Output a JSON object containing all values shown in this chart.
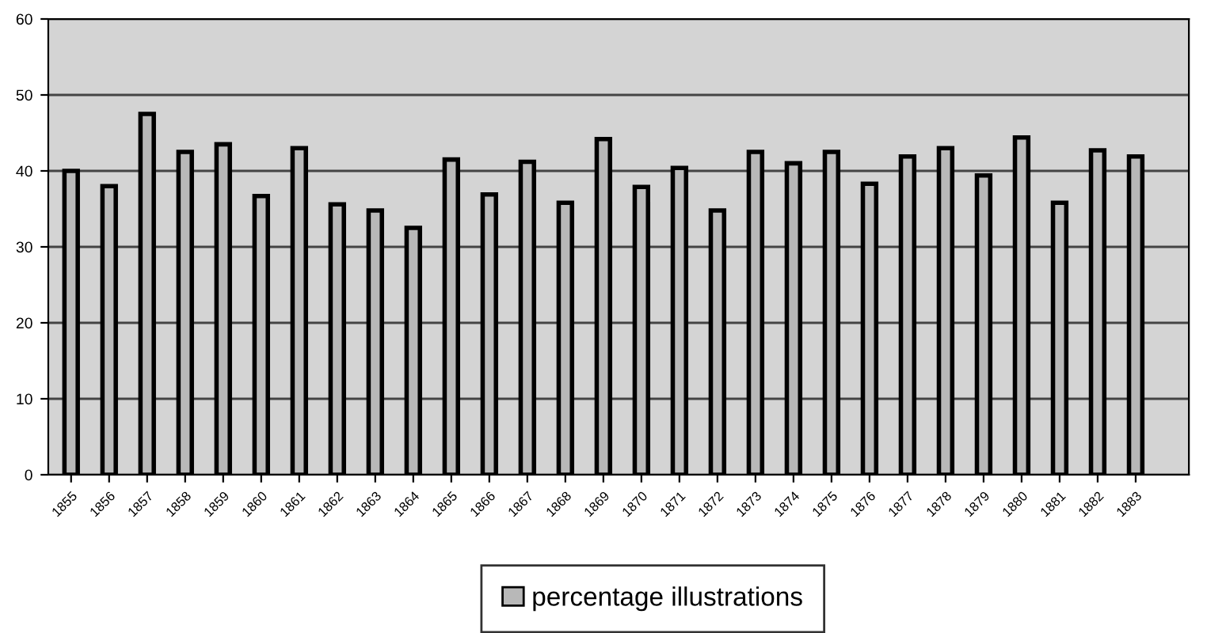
{
  "chart_data": {
    "type": "bar",
    "categories": [
      "1855",
      "1856",
      "1857",
      "1858",
      "1859",
      "1860",
      "1861",
      "1862",
      "1863",
      "1864",
      "1865",
      "1866",
      "1867",
      "1868",
      "1869",
      "1870",
      "1871",
      "1872",
      "1873",
      "1874",
      "1875",
      "1876",
      "1877",
      "1878",
      "1879",
      "1880",
      "1881",
      "1882",
      "1883"
    ],
    "series": [
      {
        "name": "percentage illustrations",
        "color": "#b8b8b8",
        "values": [
          40,
          38,
          47.5,
          42.5,
          43.5,
          36.7,
          43,
          35.6,
          34.8,
          32.5,
          41.5,
          36.9,
          41.2,
          35.8,
          44.2,
          37.9,
          40.4,
          34.8,
          42.5,
          41,
          42.5,
          38.3,
          41.9,
          43,
          39.4,
          44.4,
          35.8,
          42.7,
          41.9
        ]
      }
    ],
    "ylim": [
      0,
      60
    ],
    "yticks": [
      0,
      10,
      20,
      30,
      40,
      50,
      60
    ],
    "grid": "y",
    "legend": "bottom"
  }
}
